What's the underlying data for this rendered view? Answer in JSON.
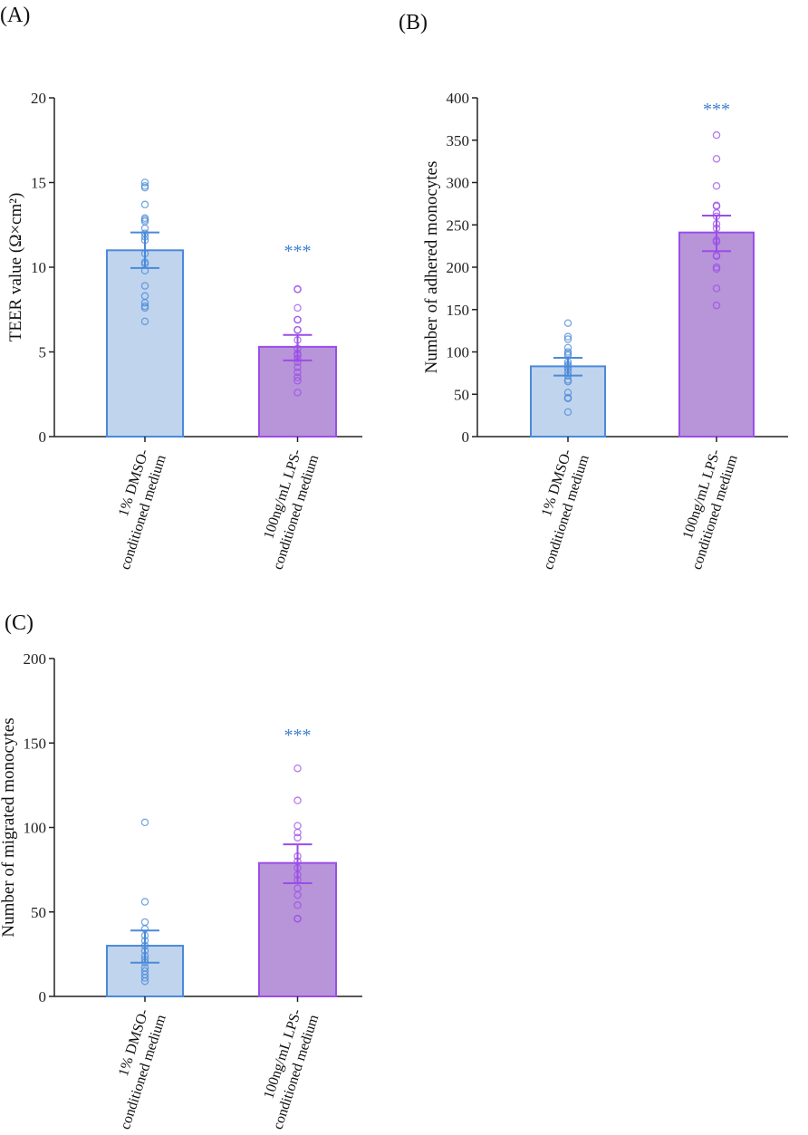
{
  "colors": {
    "group1_fill": "#c0d4ee",
    "group1_stroke": "#4a8ad8",
    "group2_fill": "#b795d8",
    "group2_stroke": "#9b4de8",
    "stars": "#3a7fd0"
  },
  "chart_data": [
    {
      "panel": "(A)",
      "type": "bar",
      "ylabel": "TEER value (Ω×cm²)",
      "ylim": [
        0,
        20
      ],
      "yticks": [
        "0",
        "5",
        "10",
        "15",
        "20"
      ],
      "categories": [
        [
          "1% DMSO-",
          "conditioned medium"
        ],
        [
          "100ng/mL LPS-",
          "conditioned medium"
        ]
      ],
      "series": [
        {
          "name": "1% DMSO-conditioned medium",
          "mean": 11.0,
          "err": [
            9.95,
            12.05
          ],
          "points": [
            15,
            14.8,
            14.7,
            13.7,
            12.9,
            12.8,
            12.7,
            12.3,
            12,
            11.8,
            11.6,
            10.8,
            10.3,
            10.2,
            9.8,
            8.9,
            8.3,
            7.9,
            7.7,
            7.6,
            6.8
          ]
        },
        {
          "name": "100ng/mL LPS-conditioned medium",
          "mean": 5.3,
          "err": [
            4.5,
            6.0
          ],
          "points": [
            8.7,
            8.7,
            7.6,
            6.9,
            6.9,
            6.3,
            6.3,
            5.7,
            5.2,
            4.9,
            4.8,
            4.6,
            4.4,
            4.1,
            3.8,
            3.5,
            3.3,
            2.6
          ],
          "annotation": "***"
        }
      ]
    },
    {
      "panel": "(B)",
      "type": "bar",
      "ylabel": "Number of adhered monocytes",
      "ylim": [
        0,
        400
      ],
      "yticks": [
        "0",
        "50",
        "100",
        "150",
        "200",
        "250",
        "300",
        "350",
        "400"
      ],
      "categories": [
        [
          "1% DMSO-",
          "conditioned medium"
        ],
        [
          "100ng/mL LPS-",
          "conditioned medium"
        ]
      ],
      "series": [
        {
          "name": "1% DMSO-conditioned medium",
          "mean": 83,
          "err": [
            72,
            93
          ],
          "points": [
            134,
            118,
            115,
            105,
            100,
            98,
            96,
            88,
            85,
            83,
            80,
            76,
            72,
            67,
            65,
            52,
            46,
            45,
            29
          ]
        },
        {
          "name": "100ng/mL LPS-conditioned medium",
          "mean": 241,
          "err": [
            219,
            261
          ],
          "points": [
            356,
            328,
            296,
            273,
            272,
            264,
            260,
            251,
            246,
            232,
            230,
            214,
            213,
            200,
            198,
            175,
            155
          ],
          "annotation": "***"
        }
      ]
    },
    {
      "panel": "(C)",
      "type": "bar",
      "ylabel": "Number of migrated monocytes",
      "ylim": [
        0,
        200
      ],
      "yticks": [
        "0",
        "50",
        "100",
        "150",
        "200"
      ],
      "categories": [
        [
          "1% DMSO-",
          "conditioned medium"
        ],
        [
          "100ng/mL LPS-",
          "conditioned medium"
        ]
      ],
      "series": [
        {
          "name": "1% DMSO-conditioned medium",
          "mean": 30,
          "err": [
            20,
            39
          ],
          "points": [
            103,
            56,
            44,
            40,
            36,
            33,
            30,
            27,
            24,
            22,
            20,
            17,
            15,
            13,
            11,
            9
          ]
        },
        {
          "name": "100ng/mL LPS-conditioned medium",
          "mean": 79,
          "err": [
            67,
            90
          ],
          "points": [
            135,
            116,
            101,
            97,
            94,
            83,
            80,
            76,
            72,
            69,
            64,
            60,
            54,
            46,
            46
          ],
          "annotation": "***"
        }
      ]
    }
  ]
}
